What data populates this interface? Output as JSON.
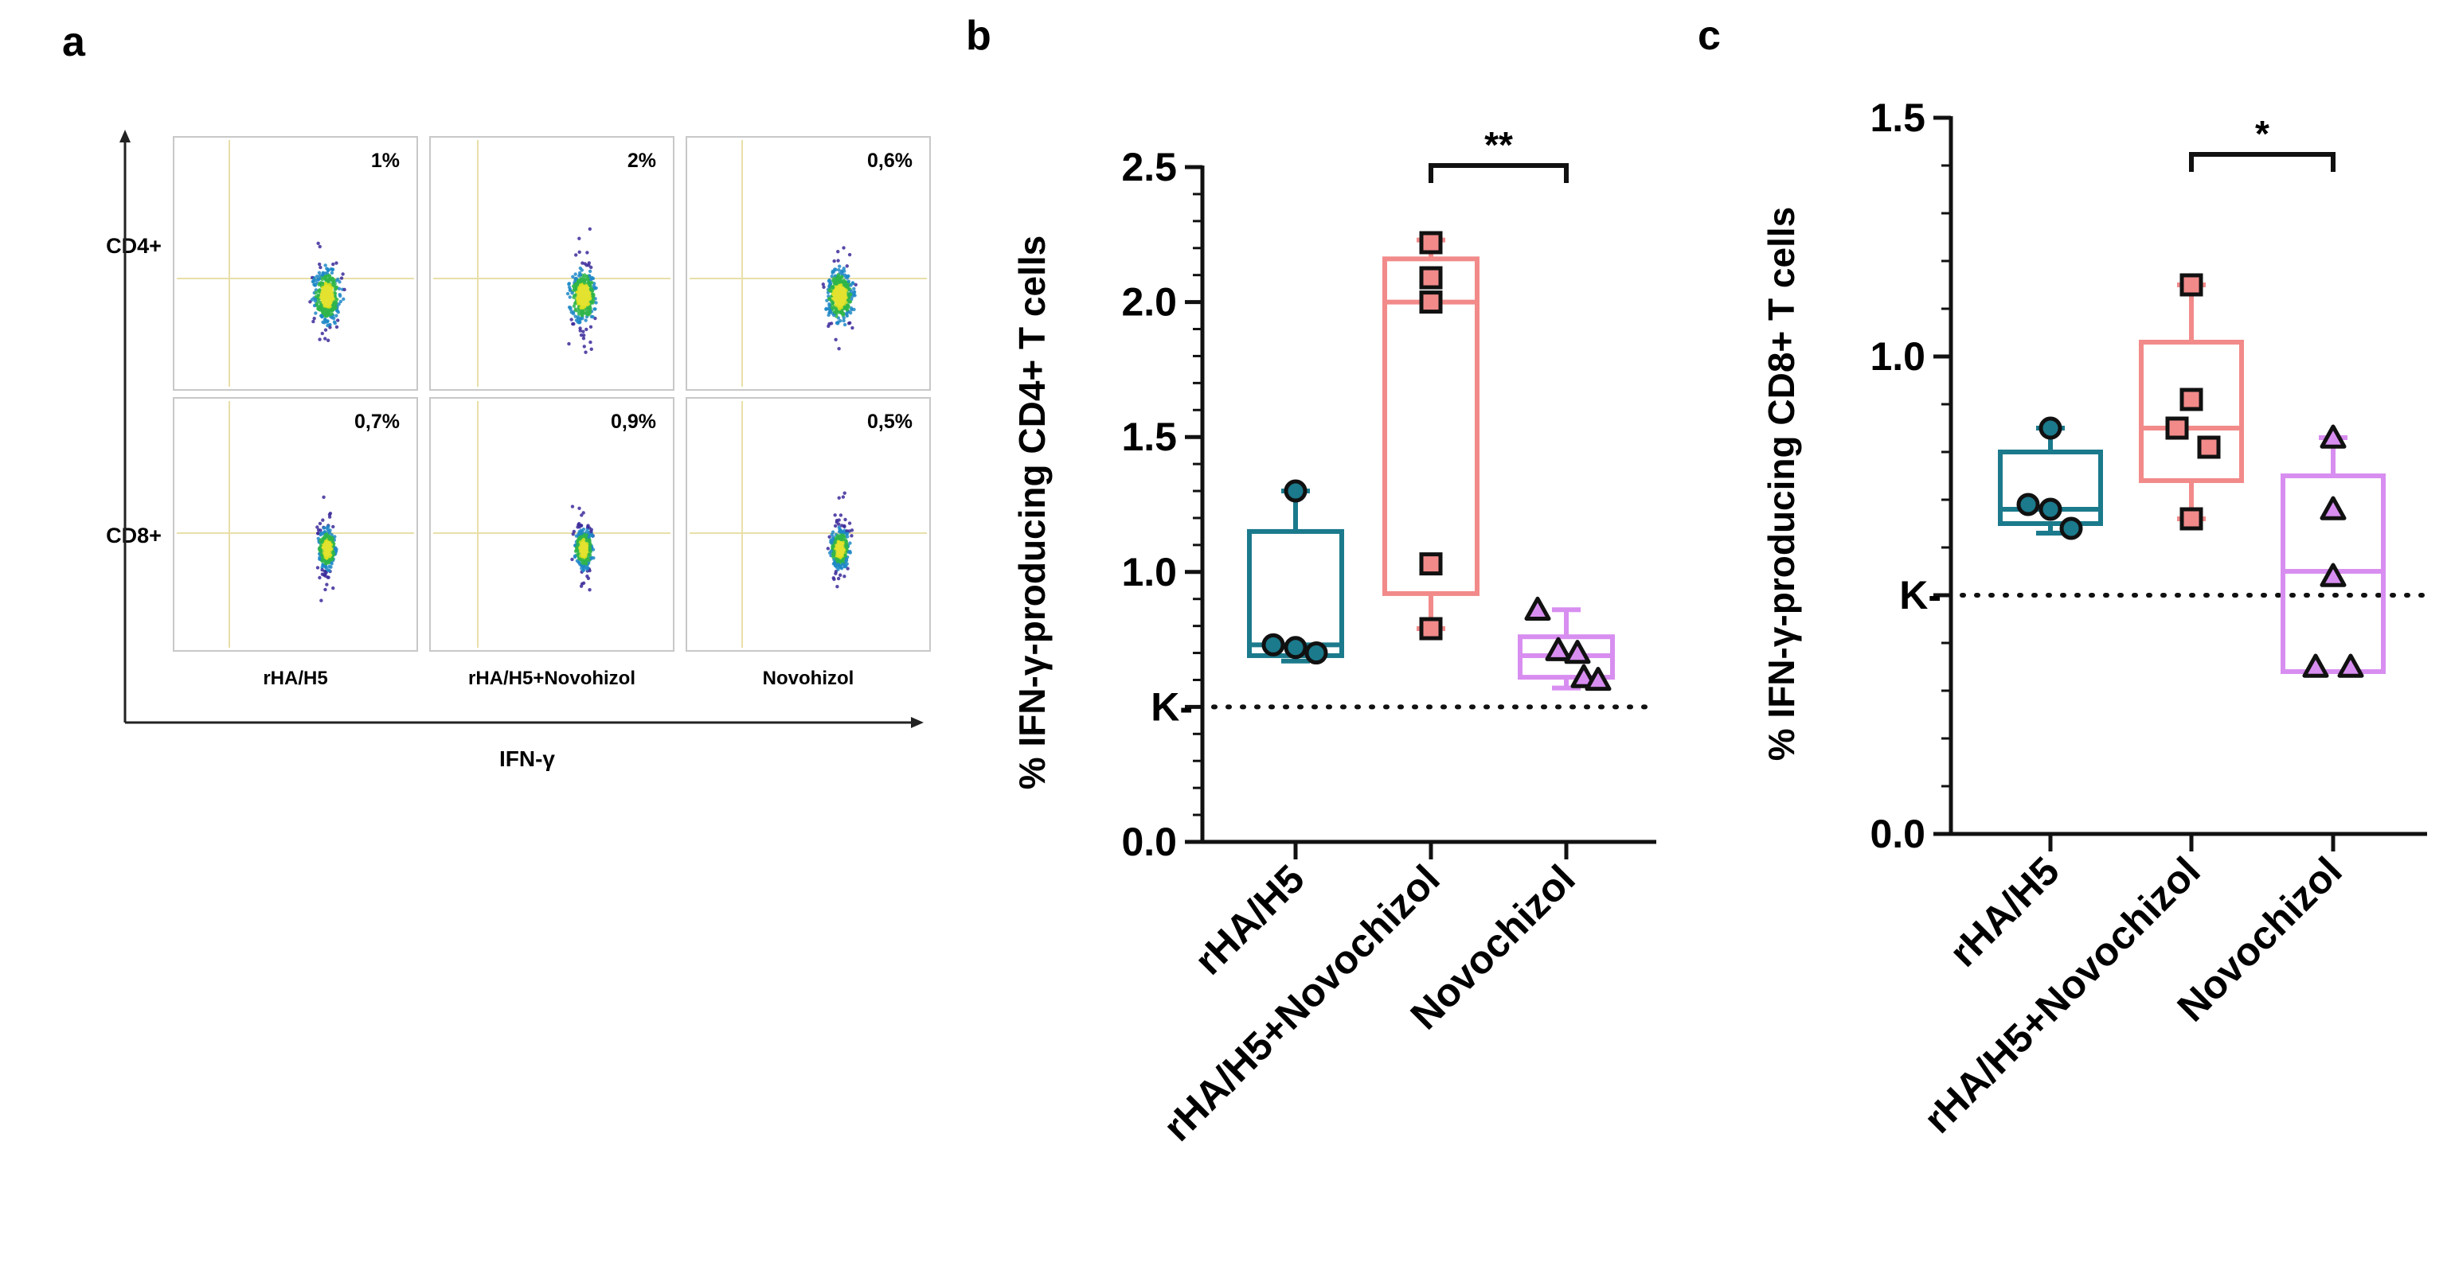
{
  "panels": {
    "a": {
      "letter": "a",
      "row_labels": [
        "CD4+",
        "CD8+"
      ],
      "column_labels": [
        "rHA/H5",
        "rHA/H5+Novohizol",
        "Novohizol"
      ],
      "x_axis_label": "IFN-γ",
      "percentages": [
        [
          "1%",
          "2%",
          "0,6%"
        ],
        [
          "0,7%",
          "0,9%",
          "0,5%"
        ]
      ]
    }
  },
  "chart_data": [
    {
      "panel": "b",
      "type": "box",
      "ylabel": "% IFN-γ-producing CD4+ T cells",
      "ylim": [
        0,
        2.5
      ],
      "yticks": [
        "0.0",
        "0.5",
        "1.0",
        "1.5",
        "2.0",
        "2.5"
      ],
      "baseline_label": "K-",
      "baseline_value": 0.5,
      "categories": [
        "rHA/H5",
        "rHA/H5+Novochizol",
        "Novochizol"
      ],
      "series": [
        {
          "category": "rHA/H5",
          "marker": "circle",
          "color": "#1b7a8c",
          "min": 0.67,
          "q1": 0.69,
          "median": 0.73,
          "q3": 1.15,
          "max": 1.3,
          "points": [
            1.3,
            0.73,
            0.72,
            0.7
          ]
        },
        {
          "category": "rHA/H5+Novochizol",
          "marker": "square",
          "color": "#f28a8a",
          "min": 0.79,
          "q1": 0.92,
          "median": 2.0,
          "q3": 2.16,
          "max": 2.23,
          "points": [
            2.22,
            2.09,
            2.0,
            1.03,
            0.79
          ]
        },
        {
          "category": "Novochizol",
          "marker": "triangle",
          "color": "#d88ef0",
          "min": 0.57,
          "q1": 0.61,
          "median": 0.69,
          "q3": 0.76,
          "max": 0.86,
          "points": [
            0.86,
            0.71,
            0.7,
            0.61,
            0.6
          ]
        }
      ],
      "significance": {
        "from": 1,
        "to": 2,
        "label": "**"
      }
    },
    {
      "panel": "c",
      "type": "box",
      "ylabel": "% IFN-γ-producing CD8+ T cells",
      "ylim": [
        0,
        1.5
      ],
      "yticks": [
        "0.0",
        "0.5",
        "1.0",
        "1.5"
      ],
      "baseline_label": "K-",
      "baseline_value": 0.5,
      "categories": [
        "rHA/H5",
        "rHA/H5+Novochizol",
        "Novochizol"
      ],
      "series": [
        {
          "category": "rHA/H5",
          "marker": "circle",
          "color": "#1b7a8c",
          "min": 0.63,
          "q1": 0.65,
          "median": 0.68,
          "q3": 0.8,
          "max": 0.85,
          "points": [
            0.85,
            0.69,
            0.68,
            0.64
          ]
        },
        {
          "category": "rHA/H5+Novochizol",
          "marker": "square",
          "color": "#f28a8a",
          "min": 0.66,
          "q1": 0.74,
          "median": 0.85,
          "q3": 1.03,
          "max": 1.15,
          "points": [
            1.15,
            0.91,
            0.85,
            0.81,
            0.66
          ]
        },
        {
          "category": "Novochizol",
          "marker": "triangle",
          "color": "#d88ef0",
          "min": 0.34,
          "q1": 0.34,
          "median": 0.55,
          "q3": 0.75,
          "max": 0.83,
          "points": [
            0.83,
            0.68,
            0.54,
            0.35,
            0.35
          ]
        }
      ],
      "significance": {
        "from": 1,
        "to": 2,
        "label": "*"
      }
    }
  ]
}
